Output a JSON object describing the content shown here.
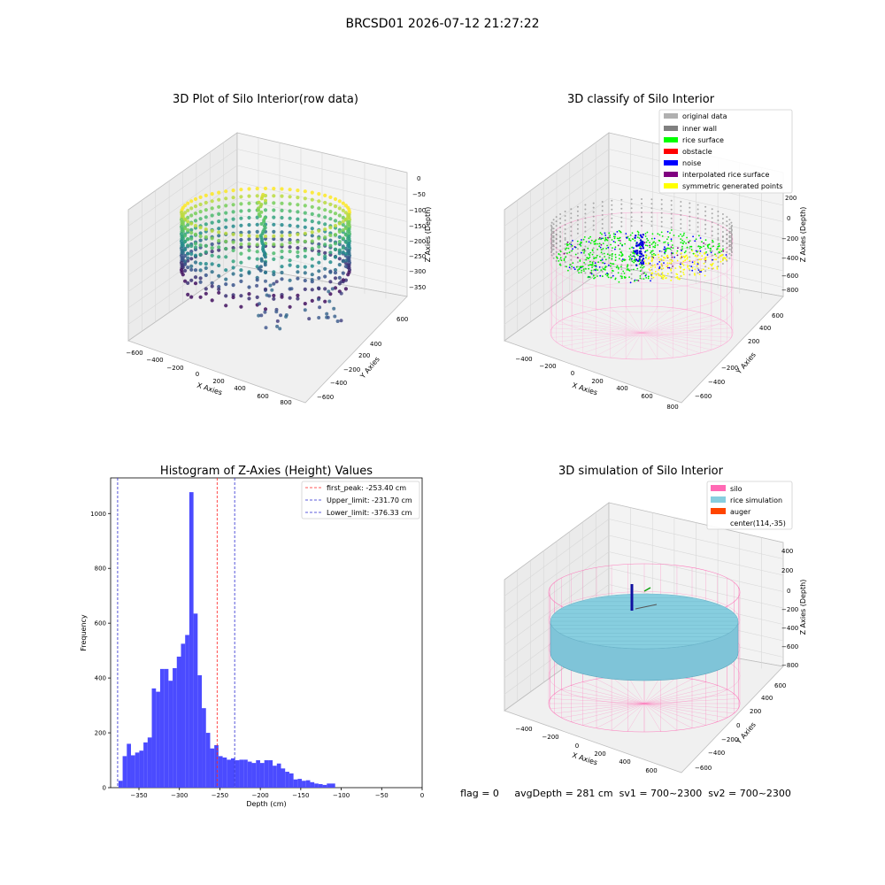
{
  "suptitle": "BRCSD01 2026-07-12 21:27:22",
  "footer_text": "flag = 0     avgDepth = 281 cm  sv1 = 700~2300  sv2 = 700~2300",
  "colors": {
    "hist_bar": "#4b4bff",
    "peak_line": "#ff2020",
    "limit_line": "#2a2ad0",
    "pane": "#f2f2f2",
    "pane_side": "#e9e9e9",
    "silo": "#ff69b4",
    "rice_sim": "#87cedf"
  },
  "chart_data": [
    {
      "type": "scatter",
      "projection": "3d",
      "title": "3D Plot of Silo Interior(row data)",
      "xlabel": "X Axies",
      "ylabel": "Y Axies",
      "zlabel": "Z Axies (Depth)",
      "xticks": [
        "−600",
        "−400",
        "−200",
        "0",
        "200",
        "400",
        "600",
        "800"
      ],
      "yticks": [
        "600",
        "400",
        "200",
        "−200",
        "−400",
        "−600"
      ],
      "zticks": [
        "0",
        "−50",
        "−100",
        "−150",
        "−200",
        "−250",
        "−300",
        "−350"
      ],
      "colormap": "viridis"
    },
    {
      "type": "scatter",
      "projection": "3d",
      "title": "3D classify of Silo Interior",
      "xlabel": "X Axies",
      "ylabel": "Y Axies",
      "zlabel": "Z Axies (Depth)",
      "xticks": [
        "−400",
        "−200",
        "0",
        "200",
        "400",
        "600",
        "800"
      ],
      "yticks": [
        "600",
        "400",
        "200",
        "−200",
        "−400",
        "−600"
      ],
      "zticks": [
        "200",
        "0",
        "−200",
        "−400",
        "−600",
        "−800"
      ],
      "legend": [
        {
          "label": "original data",
          "color": "#b0b0b0"
        },
        {
          "label": "inner wall",
          "color": "#808080"
        },
        {
          "label": "rice surface",
          "color": "#00ff00"
        },
        {
          "label": "obstacle",
          "color": "#ff0000"
        },
        {
          "label": "noise",
          "color": "#0000ff"
        },
        {
          "label": "interpolated rice surface",
          "color": "#800080"
        },
        {
          "label": "symmetric generated points",
          "color": "#ffff00"
        }
      ],
      "legend_loc": "upper right"
    },
    {
      "type": "bar",
      "title": "Histogram of Z-Axies (Height) Values",
      "xlabel": "Depth (cm)",
      "ylabel": "Frequency",
      "xlim": [
        -385,
        0
      ],
      "ylim": [
        0,
        1130
      ],
      "xticks": [
        -350,
        -300,
        -250,
        -200,
        -150,
        -100,
        -50,
        0
      ],
      "yticks": [
        0,
        200,
        400,
        600,
        800,
        1000
      ],
      "bin_width": 5.15,
      "bin_start": -375.3,
      "values": [
        25,
        115,
        160,
        118,
        128,
        135,
        165,
        183,
        362,
        350,
        433,
        433,
        390,
        436,
        478,
        525,
        557,
        1078,
        635,
        410,
        290,
        200,
        143,
        155,
        115,
        110,
        102,
        107,
        100,
        102,
        102,
        95,
        90,
        100,
        90,
        100,
        100,
        80,
        88,
        70,
        58,
        52,
        30,
        32,
        25,
        27,
        20,
        15,
        13,
        10,
        15,
        15
      ],
      "vlines": [
        {
          "label": "first_peak: -253.40 cm",
          "x": -253.4,
          "color": "#ff2020"
        },
        {
          "label": "Upper_limit: -231.70 cm",
          "x": -231.7,
          "color": "#2a2ad0"
        },
        {
          "label": "Lower_limit: -376.33 cm",
          "x": -376.33,
          "color": "#2a2ad0"
        }
      ],
      "legend_loc": "upper right"
    },
    {
      "type": "area",
      "projection": "3d",
      "title": "3D simulation of Silo Interior",
      "xlabel": "X Axies",
      "ylabel": "Y Axies",
      "zlabel": "Z Axies (Depth)",
      "xticks": [
        "−400",
        "−200",
        "0",
        "200",
        "400",
        "600"
      ],
      "yticks": [
        "600",
        "400",
        "200",
        "0",
        "−200",
        "−400",
        "−600"
      ],
      "zticks": [
        "400",
        "200",
        "0",
        "−200",
        "−400",
        "−600",
        "−800"
      ],
      "legend": [
        {
          "label": "silo",
          "color": "#ff69b4"
        },
        {
          "label": "rice simulation",
          "color": "#87cedf"
        },
        {
          "label": "auger",
          "color": "#ff4500"
        },
        {
          "label": "center(114,-35)",
          "color": ""
        }
      ],
      "legend_loc": "upper right"
    }
  ]
}
